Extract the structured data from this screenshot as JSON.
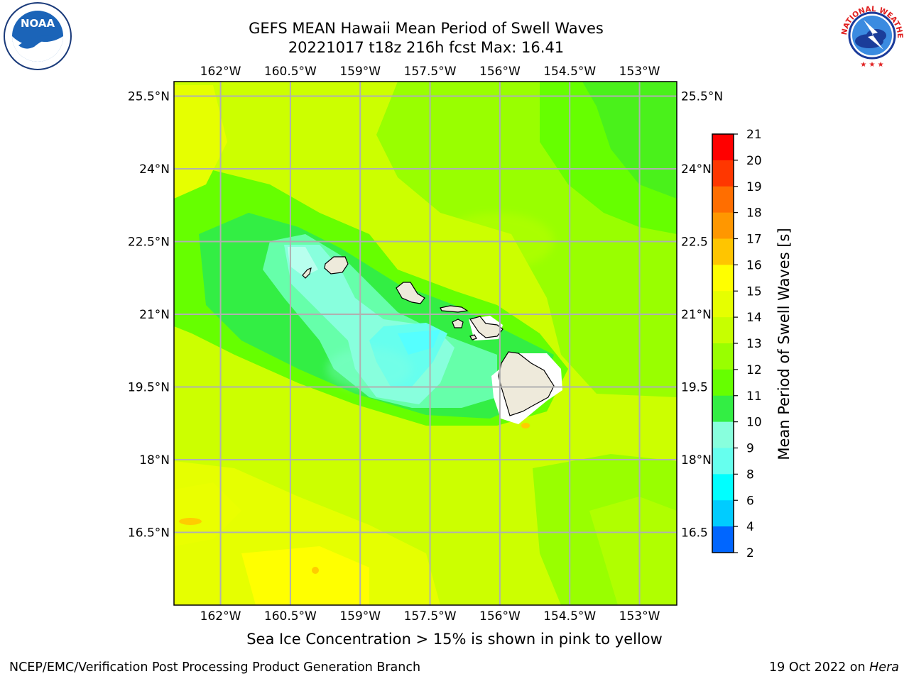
{
  "title": {
    "line1": "GEFS MEAN Hawaii Mean Period of Swell Waves",
    "line2": "20221017 t18z 216h fcst   Max: 16.41"
  },
  "logos": {
    "left": {
      "name": "noaa-logo",
      "text": "NOAA"
    },
    "right": {
      "name": "national-weather-service-logo",
      "text": "NATIONAL WEATHER SERVICE"
    }
  },
  "map": {
    "lon_range": [
      -163.0,
      -152.2
    ],
    "lat_range": [
      15.0,
      25.8
    ],
    "lon_ticks": [
      "162°W",
      "160.5°W",
      "159°W",
      "157.5°W",
      "156°W",
      "154.5°W",
      "153°W"
    ],
    "lon_tick_values": [
      -162.0,
      -160.5,
      -159.0,
      -157.5,
      -156.0,
      -154.5,
      -153.0
    ],
    "lat_ticks": [
      "25.5°N",
      "24°N",
      "22.5°N",
      "21°N",
      "19.5°N",
      "18°N",
      "16.5°N"
    ],
    "lat_tick_values": [
      25.5,
      24.0,
      22.5,
      21.0,
      19.5,
      18.0,
      16.5
    ],
    "right_lat_ticks": [
      "25.5°N",
      "24°N",
      "22.5",
      "21°N",
      "19.5",
      "18°N",
      "16.5"
    ],
    "gridlines": true,
    "islands": [
      "Niihau",
      "Kauai",
      "Oahu",
      "Molokai",
      "Lanai",
      "Kahoolawe",
      "Maui",
      "Hawaii"
    ],
    "land_color": "#eeeadb",
    "grid_color": "#b0b0b0"
  },
  "colorbar": {
    "label": "Mean Period of Swell Waves [s]",
    "ticks": [
      "21",
      "20",
      "19",
      "18",
      "17",
      "16",
      "15",
      "14",
      "13",
      "12",
      "11",
      "10",
      "9",
      "8",
      "6",
      "4",
      "2"
    ],
    "colors": [
      "#ff0000",
      "#ff3700",
      "#ff6e00",
      "#ff9700",
      "#ffc500",
      "#ffff00",
      "#e6ff00",
      "#c7ff00",
      "#99ff00",
      "#66ff00",
      "#33ee44",
      "#88ffdd",
      "#66ffee",
      "#00ffff",
      "#00ccff",
      "#0066ff",
      "#0000ff"
    ]
  },
  "footnote": "Sea Ice Concentration > 15% is shown in pink to yellow",
  "footer": {
    "left": "NCEP/EMC/Verification Post Processing Product Generation Branch",
    "right_prefix": "19 Oct 2022 on ",
    "right_host": "Hera"
  }
}
